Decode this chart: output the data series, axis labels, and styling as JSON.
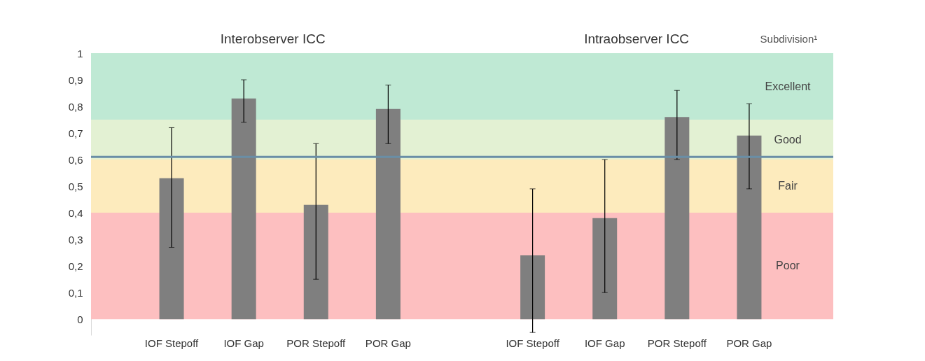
{
  "chart_data": {
    "type": "bar",
    "categories": [
      "IOF Stepoff",
      "IOF Gap",
      "POR Stepoff",
      "POR Gap",
      null,
      "IOF Stepoff",
      "IOF Gap",
      "POR Stepoff",
      "POR Gap"
    ],
    "values": [
      0.53,
      0.83,
      0.43,
      0.79,
      null,
      0.24,
      0.38,
      0.76,
      0.69
    ],
    "errors": [
      [
        0.27,
        0.72
      ],
      [
        0.74,
        0.9
      ],
      [
        0.15,
        0.66
      ],
      [
        0.66,
        0.88
      ],
      null,
      [
        -0.05,
        0.49
      ],
      [
        0.1,
        0.6
      ],
      [
        0.6,
        0.86
      ],
      [
        0.49,
        0.81
      ]
    ],
    "color": "#7f7f7f",
    "ylim": [
      -0.06,
      1
    ],
    "yticks": [
      0,
      {
        "value": 0.1,
        "label": "0,1"
      },
      {
        "value": 0.2,
        "label": "0,2"
      },
      {
        "value": 0.3,
        "label": "0,3"
      },
      {
        "value": 0.4,
        "label": "0,4"
      },
      {
        "value": 0.5,
        "label": "0,5"
      },
      {
        "value": 0.6,
        "label": "0,6"
      },
      {
        "value": 0.7,
        "label": "0,7"
      },
      {
        "value": 0.8,
        "label": "0,8"
      },
      {
        "value": 0.9,
        "label": "0,9"
      },
      1
    ],
    "bands": [
      {
        "axis": "y",
        "from": 0,
        "to": 0.4,
        "label": "Poor",
        "color": "#fdbfc0"
      },
      {
        "axis": "y",
        "from": 0.4,
        "to": 0.6,
        "label": "Fair",
        "color": "#fdebbd"
      },
      {
        "axis": "y",
        "from": 0.6,
        "to": 0.75,
        "label": "Good",
        "color": "#e3f1d3"
      },
      {
        "axis": "y",
        "from": 0.75,
        "to": 1,
        "label": "Excellent",
        "color": "#bfe9d4"
      }
    ],
    "ref_lines": [
      {
        "axis": "y",
        "value": 0.61,
        "color": "#6a8ea6"
      }
    ],
    "annotations": [
      "Interobserver ICC",
      "Intraobserver ICC",
      "Subdivision¹"
    ],
    "grid": false
  }
}
